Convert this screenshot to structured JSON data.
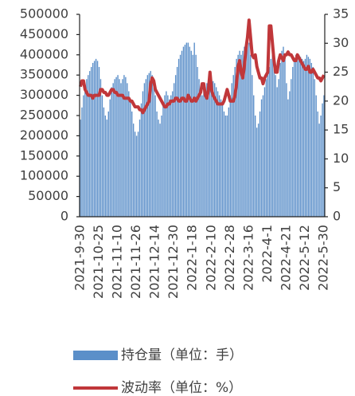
{
  "chart_data": {
    "type": "bar_line",
    "categories": [
      "2021-9-30",
      null,
      null,
      null,
      null,
      null,
      null,
      null,
      null,
      null,
      null,
      null,
      "2021-10-25",
      null,
      null,
      null,
      null,
      null,
      null,
      null,
      null,
      null,
      null,
      null,
      "2021-11-10",
      null,
      null,
      null,
      null,
      null,
      null,
      null,
      null,
      null,
      null,
      null,
      "2021-11-26",
      null,
      null,
      null,
      null,
      null,
      null,
      null,
      null,
      null,
      null,
      null,
      "2021-12-14",
      null,
      null,
      null,
      null,
      null,
      null,
      null,
      null,
      null,
      null,
      null,
      "2021-12-30",
      null,
      null,
      null,
      null,
      null,
      null,
      null,
      null,
      null,
      null,
      null,
      "2022-1-18",
      null,
      null,
      null,
      null,
      null,
      null,
      null,
      null,
      null,
      null,
      null,
      "2022-2-10",
      null,
      null,
      null,
      null,
      null,
      null,
      null,
      null,
      null,
      null,
      null,
      "2022-2-28",
      null,
      null,
      null,
      null,
      null,
      null,
      null,
      null,
      null,
      null,
      null,
      "2022-3-16",
      null,
      null,
      null,
      null,
      null,
      null,
      null,
      null,
      null,
      null,
      null,
      "2022-4-1",
      null,
      null,
      null,
      null,
      null,
      null,
      null,
      null,
      null,
      null,
      null,
      "2022-4-21",
      null,
      null,
      null,
      null,
      null,
      null,
      null,
      null,
      null,
      null,
      null,
      "2022-5-12",
      null,
      null,
      null,
      null,
      null,
      null,
      null,
      null,
      null,
      null,
      null,
      "2022-5-30"
    ],
    "series": [
      {
        "name": "持仓量（单位：手）",
        "kind": "bar",
        "color": "#5b8fc9",
        "values": [
          240000,
          270000,
          300000,
          320000,
          340000,
          350000,
          360000,
          370000,
          380000,
          385000,
          390000,
          385000,
          370000,
          340000,
          300000,
          270000,
          250000,
          240000,
          260000,
          290000,
          320000,
          330000,
          340000,
          345000,
          350000,
          340000,
          330000,
          340000,
          350000,
          345000,
          330000,
          310000,
          290000,
          260000,
          230000,
          210000,
          200000,
          210000,
          240000,
          280000,
          310000,
          330000,
          340000,
          350000,
          355000,
          360000,
          350000,
          330000,
          300000,
          260000,
          240000,
          230000,
          250000,
          280000,
          300000,
          310000,
          300000,
          290000,
          300000,
          310000,
          330000,
          350000,
          370000,
          390000,
          400000,
          410000,
          420000,
          425000,
          430000,
          430000,
          420000,
          410000,
          400000,
          430000,
          400000,
          370000,
          340000,
          310000,
          300000,
          310000,
          320000,
          330000,
          340000,
          345000,
          340000,
          335000,
          330000,
          320000,
          310000,
          300000,
          290000,
          280000,
          260000,
          250000,
          250000,
          270000,
          300000,
          330000,
          350000,
          370000,
          390000,
          400000,
          410000,
          400000,
          410000,
          420000,
          425000,
          430000,
          430000,
          400000,
          350000,
          300000,
          250000,
          220000,
          230000,
          260000,
          290000,
          300000,
          320000,
          340000,
          350000,
          370000,
          390000,
          400000,
          380000,
          350000,
          320000,
          340000,
          380000,
          410000,
          420000,
          400000,
          330000,
          290000,
          310000,
          340000,
          370000,
          390000,
          400000,
          400000,
          400000,
          395000,
          390000,
          385000,
          390000,
          400000,
          395000,
          390000,
          380000,
          370000,
          340000,
          300000,
          260000,
          230000,
          250000,
          280000,
          300000
        ]
      },
      {
        "name": "波动率（单位：%）",
        "kind": "line",
        "axis": "y2",
        "color": "#c0373a",
        "values": [
          22.5,
          23.5,
          23.5,
          22,
          21.5,
          21,
          21,
          21,
          20.5,
          21,
          21,
          21,
          21,
          22,
          22,
          21.5,
          21.5,
          21,
          21,
          21.5,
          22,
          22,
          21.5,
          21.5,
          21,
          21,
          21,
          21,
          20.5,
          20.5,
          20.5,
          20.5,
          20,
          20,
          19.5,
          19,
          19,
          19,
          18.5,
          18.5,
          18,
          18.5,
          19,
          19.5,
          20,
          23,
          24,
          23.5,
          22,
          21.5,
          21,
          20.5,
          20,
          19.5,
          19,
          19,
          19.5,
          19.5,
          20,
          20,
          20,
          20.5,
          20.5,
          20,
          20,
          20.5,
          20.5,
          20,
          20,
          21,
          20.5,
          20,
          20,
          20.5,
          20,
          20.5,
          21,
          21.5,
          23,
          23,
          21,
          20.5,
          22,
          25,
          22,
          21,
          20.5,
          20,
          19.5,
          19.5,
          19.5,
          19.5,
          20,
          21,
          22,
          21,
          20,
          20,
          20,
          21,
          23,
          26,
          27,
          25,
          24,
          26,
          29,
          31,
          34,
          31,
          28,
          27.5,
          28,
          26,
          25,
          24,
          24,
          23,
          24,
          24.5,
          25,
          33,
          33,
          30,
          27,
          25,
          25,
          27,
          28,
          27.5,
          27,
          28,
          28,
          28.5,
          28,
          28,
          27.5,
          27,
          27,
          28,
          27.5,
          27,
          26.5,
          26,
          25.5,
          25.5,
          26,
          25,
          25,
          25.5,
          25,
          24.5,
          24,
          24,
          23.5,
          24,
          24.5
        ]
      }
    ],
    "ylim": [
      0,
      500000
    ],
    "yticks": [
      0,
      50000,
      100000,
      150000,
      200000,
      250000,
      300000,
      350000,
      400000,
      450000,
      500000
    ],
    "y2lim": [
      0,
      35
    ],
    "y2ticks": [
      0,
      5,
      10,
      15,
      20,
      25,
      30,
      35
    ]
  }
}
